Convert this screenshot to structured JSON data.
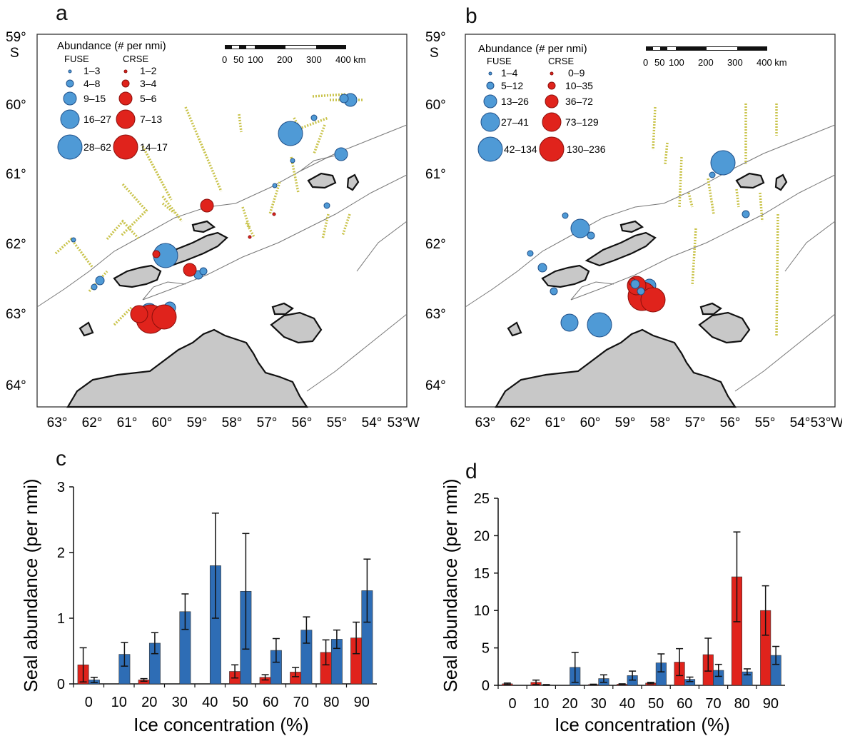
{
  "maps": [
    {
      "letter": "a",
      "lat_labels": [
        "59°",
        "60°",
        "61°",
        "62°",
        "63°",
        "64°"
      ],
      "lat_suffix": "S",
      "lon_labels": [
        "63°",
        "62°",
        "61°",
        "60°",
        "59°",
        "58°",
        "57°",
        "56°",
        "55°",
        "54°",
        "53°"
      ],
      "lon_suffix": "W",
      "legend_title": "Abundance (# per nmi)",
      "fuse_header": "FUSE",
      "crse_header": "CRSE",
      "fuse_bins": [
        "1–3",
        "4–8",
        "9–15",
        "16–27",
        "28–62"
      ],
      "crse_bins": [
        "1–2",
        "3–4",
        "5–6",
        "7–13",
        "14–17"
      ],
      "scale_labels": [
        "0",
        "50",
        "100",
        "200",
        "300",
        "400 km"
      ]
    },
    {
      "letter": "b",
      "lat_labels": [
        "59°",
        "60°",
        "61°",
        "62°",
        "63°",
        "64°"
      ],
      "lat_suffix": "S",
      "lon_labels": [
        "63°",
        "62°",
        "61°",
        "60°",
        "59°",
        "58°",
        "57°",
        "56°",
        "55°",
        "54°",
        "53°"
      ],
      "lon_suffix": "W",
      "legend_title": "Abundance (# per nmi)",
      "fuse_header": "FUSE",
      "crse_header": "CRSE",
      "fuse_bins": [
        "1–4",
        "5–12",
        "13–26",
        "27–41",
        "42–134"
      ],
      "crse_bins": [
        "0–9",
        "10–35",
        "36–72",
        "73–129",
        "130–236"
      ],
      "scale_labels": [
        "0",
        "50",
        "100",
        "200",
        "300",
        "400 km"
      ]
    }
  ],
  "colors": {
    "fuse": "#2e6db5",
    "fuse_light": "#4f9ad6",
    "crse": "#e0231c",
    "land": "#c8c8c8",
    "track": "#c9c34a"
  },
  "chart_data": [
    {
      "type": "bar",
      "letter": "c",
      "xlabel": "Ice concentration (%)",
      "ylabel": "Seal abundance (per nmi)",
      "ylim": [
        0,
        3
      ],
      "yticks": [
        0,
        1,
        2,
        3
      ],
      "categories": [
        "0",
        "10",
        "20",
        "30",
        "40",
        "50",
        "60",
        "70",
        "80",
        "90"
      ],
      "series": [
        {
          "key": "crse",
          "values": [
            0.29,
            0.0,
            0.06,
            0.0,
            0.0,
            0.19,
            0.1,
            0.18,
            0.48,
            0.7
          ],
          "errors": [
            0.26,
            0.0,
            0.02,
            0.0,
            0.0,
            0.1,
            0.04,
            0.07,
            0.19,
            0.24
          ]
        },
        {
          "key": "fuse",
          "values": [
            0.06,
            0.45,
            0.62,
            1.1,
            1.8,
            1.41,
            0.51,
            0.82,
            0.68,
            1.42
          ],
          "errors": [
            0.04,
            0.18,
            0.16,
            0.27,
            0.8,
            0.88,
            0.18,
            0.2,
            0.14,
            0.48
          ]
        }
      ]
    },
    {
      "type": "bar",
      "letter": "d",
      "xlabel": "Ice concentration (%)",
      "ylabel": "Seal abundance (per nmi)",
      "ylim": [
        0,
        25
      ],
      "yticks": [
        0,
        5,
        10,
        15,
        20,
        25
      ],
      "categories": [
        "0",
        "10",
        "20",
        "30",
        "40",
        "50",
        "60",
        "70",
        "80",
        "90"
      ],
      "series": [
        {
          "key": "crse",
          "values": [
            0.2,
            0.4,
            0.0,
            0.1,
            0.15,
            0.3,
            3.1,
            4.1,
            14.5,
            10.0
          ],
          "errors": [
            0.1,
            0.3,
            0.0,
            0.05,
            0.05,
            0.1,
            1.8,
            2.2,
            6.0,
            3.3
          ]
        },
        {
          "key": "fuse",
          "values": [
            0.0,
            0.05,
            2.4,
            0.9,
            1.3,
            3.0,
            0.8,
            2.0,
            1.8,
            4.0
          ],
          "errors": [
            0.0,
            0.05,
            2.0,
            0.5,
            0.6,
            1.2,
            0.3,
            0.8,
            0.4,
            1.2
          ]
        }
      ]
    }
  ]
}
